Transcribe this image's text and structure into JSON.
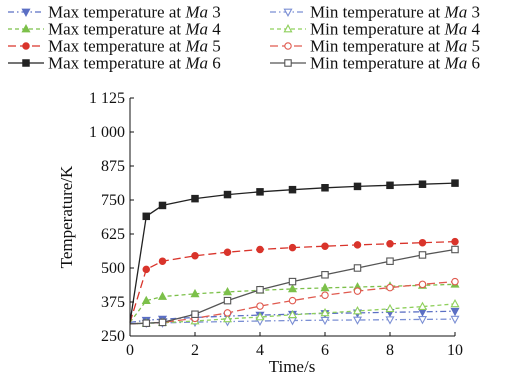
{
  "chart_data": {
    "type": "line",
    "xlabel": "Time/s",
    "ylabel": "Temperature/K",
    "xlim": [
      0,
      10
    ],
    "ylim": [
      250,
      1125
    ],
    "x_ticks": [
      0,
      2,
      4,
      6,
      8,
      10
    ],
    "y_ticks": [
      250,
      375,
      500,
      625,
      750,
      875,
      1000,
      1125
    ],
    "y_tick_labels": [
      "250",
      "375",
      "500",
      "625",
      "750",
      "875",
      "1 000",
      "1 125"
    ],
    "x_tick_labels": [
      "0",
      "2",
      "4",
      "6",
      "8",
      "10"
    ],
    "grid": false,
    "legend_position": "top",
    "series": [
      {
        "name": "Max temperature at Ma 3",
        "label_prefix": "Max temperature at ",
        "label_ma": "Ma",
        "label_num": "3",
        "color": "#5b6fc4",
        "dash": "6,3,1.5,3",
        "marker": "triangle-down-filled",
        "x": [
          0,
          0.5,
          1,
          2,
          3,
          4,
          5,
          6,
          7,
          8,
          9,
          10
        ],
        "y": [
          300,
          308,
          312,
          318,
          323,
          327,
          330,
          333,
          335,
          337,
          339,
          341
        ]
      },
      {
        "name": "Min temperature at Ma 3",
        "label_prefix": "Min temperature at ",
        "label_ma": "Ma",
        "label_num": "3",
        "color": "#7b8fd4",
        "dash": "6,3,1.5,3",
        "marker": "triangle-down-open",
        "x": [
          0,
          0.5,
          1,
          2,
          3,
          4,
          5,
          6,
          7,
          8,
          9,
          10
        ],
        "y": [
          295,
          297,
          298,
          301,
          303,
          305,
          307,
          308,
          309,
          310,
          311,
          312
        ]
      },
      {
        "name": "Max temperature at Ma 4",
        "label_prefix": "Max temperature at ",
        "label_ma": "Ma",
        "label_num": "4",
        "color": "#7cc04a",
        "dash": "4,3",
        "marker": "triangle-up-filled",
        "x": [
          0,
          0.5,
          1,
          2,
          3,
          4,
          5,
          6,
          7,
          8,
          9,
          10
        ],
        "y": [
          300,
          380,
          395,
          405,
          412,
          418,
          423,
          427,
          430,
          433,
          436,
          440
        ]
      },
      {
        "name": "Min temperature at Ma 4",
        "label_prefix": "Min temperature at ",
        "label_ma": "Ma",
        "label_num": "4",
        "color": "#8fd05c",
        "dash": "4,3",
        "marker": "triangle-up-open",
        "x": [
          0,
          0.5,
          1,
          2,
          3,
          4,
          5,
          6,
          7,
          8,
          9,
          10
        ],
        "y": [
          295,
          297,
          299,
          305,
          313,
          320,
          328,
          335,
          342,
          350,
          358,
          368
        ]
      },
      {
        "name": "Max temperature at Ma 5",
        "label_prefix": "Max temperature at ",
        "label_ma": "Ma",
        "label_num": "5",
        "color": "#d9342b",
        "dash": "8,4",
        "marker": "circle-filled",
        "x": [
          0,
          0.5,
          1,
          2,
          3,
          4,
          5,
          6,
          7,
          8,
          9,
          10
        ],
        "y": [
          300,
          495,
          525,
          545,
          558,
          568,
          575,
          580,
          585,
          589,
          593,
          597
        ]
      },
      {
        "name": "Min temperature at Ma 5",
        "label_prefix": "Min temperature at ",
        "label_ma": "Ma",
        "label_num": "5",
        "color": "#e05a4f",
        "dash": "8,4",
        "marker": "circle-open",
        "x": [
          0,
          0.5,
          1,
          2,
          3,
          4,
          5,
          6,
          7,
          8,
          9,
          10
        ],
        "y": [
          295,
          297,
          300,
          315,
          335,
          360,
          380,
          400,
          415,
          428,
          440,
          450
        ]
      },
      {
        "name": "Max temperature at Ma 6",
        "label_prefix": "Max temperature at ",
        "label_ma": "Ma",
        "label_num": "6",
        "color": "#222222",
        "dash": "",
        "marker": "square-filled",
        "x": [
          0,
          0.5,
          1,
          2,
          3,
          4,
          5,
          6,
          7,
          8,
          9,
          10
        ],
        "y": [
          300,
          690,
          730,
          755,
          770,
          780,
          788,
          795,
          800,
          804,
          808,
          812
        ]
      },
      {
        "name": "Min temperature at Ma 6",
        "label_prefix": "Min temperature at ",
        "label_ma": "Ma",
        "label_num": "6",
        "color": "#555555",
        "dash": "",
        "marker": "square-open",
        "x": [
          0,
          0.5,
          1,
          2,
          3,
          4,
          5,
          6,
          7,
          8,
          9,
          10
        ],
        "y": [
          295,
          297,
          300,
          330,
          380,
          420,
          450,
          475,
          500,
          525,
          548,
          568
        ]
      }
    ]
  }
}
